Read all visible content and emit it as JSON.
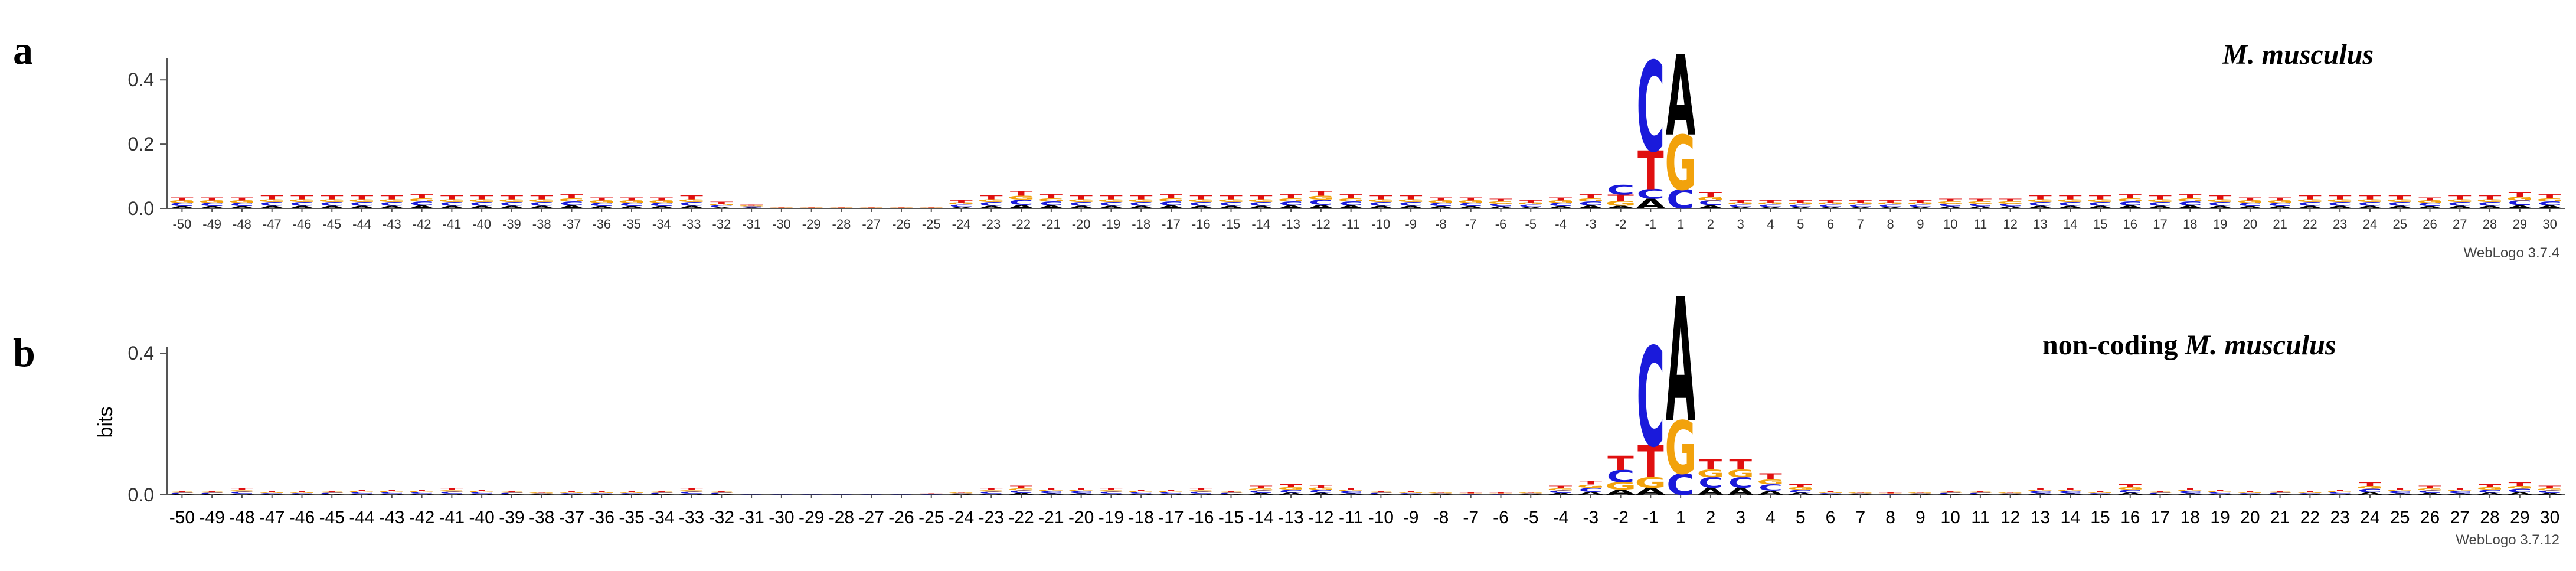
{
  "chart_data": [
    {
      "type": "sequence-logo",
      "panel_label": "a",
      "species": "M. musculus",
      "species_prefix": "",
      "credit": "WebLogo 3.7.4",
      "ylabel": "",
      "yticks": [
        "0.0",
        "0.2",
        "0.4"
      ],
      "ylim": [
        0,
        0.45
      ],
      "positions": [
        -50,
        -49,
        -48,
        -47,
        -46,
        -45,
        -44,
        -43,
        -42,
        -41,
        -40,
        -39,
        -38,
        -37,
        -36,
        -35,
        -34,
        -33,
        -32,
        -31,
        -30,
        -29,
        -28,
        -27,
        -26,
        -25,
        -24,
        -23,
        -22,
        -21,
        -20,
        -19,
        -18,
        -17,
        -16,
        -15,
        -14,
        -13,
        -12,
        -11,
        -10,
        -9,
        -8,
        -7,
        -6,
        -5,
        -4,
        -3,
        -2,
        -1,
        1,
        2,
        3,
        4,
        5,
        6,
        7,
        8,
        9,
        10,
        11,
        12,
        13,
        14,
        15,
        16,
        17,
        18,
        19,
        20,
        21,
        22,
        23,
        24,
        25,
        26,
        27,
        28,
        29,
        30
      ],
      "background_bits": [
        0.035,
        0.035,
        0.035,
        0.04,
        0.04,
        0.04,
        0.04,
        0.04,
        0.045,
        0.04,
        0.04,
        0.04,
        0.04,
        0.045,
        0.035,
        0.035,
        0.035,
        0.04,
        0.02,
        0.012,
        0.004,
        0.004,
        0.004,
        0.004,
        0.004,
        0.004,
        0.025,
        0.04,
        0.055,
        0.045,
        0.04,
        0.04,
        0.04,
        0.045,
        0.04,
        0.04,
        0.04,
        0.045,
        0.055,
        0.045,
        0.04,
        0.04,
        0.035,
        0.035,
        0.03,
        0.025,
        0.035,
        0.045,
        0.08,
        0,
        0,
        0.05,
        0.025,
        0.025,
        0.025,
        0.025,
        0.025,
        0.025,
        0.025,
        0.03,
        0.03,
        0.03,
        0.04,
        0.04,
        0.04,
        0.045,
        0.04,
        0.045,
        0.04,
        0.035,
        0.035,
        0.04,
        0.04,
        0.04,
        0.04,
        0.035,
        0.04,
        0.04,
        0.05,
        0.045
      ],
      "major_stacks": [
        {
          "position": -2,
          "letters": [
            {
              "base": "A",
              "bits": 0.008
            },
            {
              "base": "G",
              "bits": 0.015
            },
            {
              "base": "T",
              "bits": 0.02
            },
            {
              "base": "C",
              "bits": 0.03
            }
          ]
        },
        {
          "position": -1,
          "letters": [
            {
              "base": "A",
              "bits": 0.03
            },
            {
              "base": "C",
              "bits": 0.03
            },
            {
              "base": "T",
              "bits": 0.12
            },
            {
              "base": "C",
              "bits": 0.28
            }
          ]
        },
        {
          "position": 1,
          "letters": [
            {
              "base": "C",
              "bits": 0.06
            },
            {
              "base": "G",
              "bits": 0.17
            },
            {
              "base": "A",
              "bits": 0.25
            }
          ]
        }
      ]
    },
    {
      "type": "sequence-logo",
      "panel_label": "b",
      "species": "M. musculus",
      "species_prefix": "non-coding",
      "credit": "WebLogo 3.7.12",
      "ylabel": "bits",
      "yticks": [
        "0.0",
        "0.4"
      ],
      "ylim": [
        0,
        0.4
      ],
      "positions": [
        -50,
        -49,
        -48,
        -47,
        -46,
        -45,
        -44,
        -43,
        -42,
        -41,
        -40,
        -39,
        -38,
        -37,
        -36,
        -35,
        -34,
        -33,
        -32,
        -31,
        -30,
        -29,
        -28,
        -27,
        -26,
        -25,
        -24,
        -23,
        -22,
        -21,
        -20,
        -19,
        -18,
        -17,
        -16,
        -15,
        -14,
        -13,
        -12,
        -11,
        -10,
        -9,
        -8,
        -7,
        -6,
        -5,
        -4,
        -3,
        -2,
        -1,
        1,
        2,
        3,
        4,
        5,
        6,
        7,
        8,
        9,
        10,
        11,
        12,
        13,
        14,
        15,
        16,
        17,
        18,
        19,
        20,
        21,
        22,
        23,
        24,
        25,
        26,
        27,
        28,
        29,
        30
      ],
      "background_bits": [
        0.012,
        0.012,
        0.018,
        0.01,
        0.01,
        0.012,
        0.015,
        0.015,
        0.015,
        0.018,
        0.015,
        0.012,
        0.008,
        0.01,
        0.01,
        0.01,
        0.012,
        0.018,
        0.012,
        0.004,
        0.003,
        0.003,
        0.003,
        0.003,
        0.004,
        0.005,
        0.008,
        0.018,
        0.025,
        0.02,
        0.02,
        0.018,
        0.015,
        0.015,
        0.018,
        0.012,
        0.025,
        0.03,
        0.028,
        0.02,
        0.012,
        0.01,
        0.008,
        0.006,
        0.006,
        0.008,
        0.025,
        0.04,
        0.11,
        0,
        0,
        0.1,
        0.1,
        0.06,
        0.03,
        0.01,
        0.008,
        0.006,
        0.008,
        0.012,
        0.012,
        0.008,
        0.02,
        0.02,
        0.01,
        0.03,
        0.012,
        0.02,
        0.015,
        0.01,
        0.012,
        0.01,
        0.015,
        0.035,
        0.02,
        0.025,
        0.02,
        0.03,
        0.035,
        0.025
      ],
      "major_stacks": [
        {
          "position": -2,
          "letters": [
            {
              "base": "A",
              "bits": 0.015
            },
            {
              "base": "G",
              "bits": 0.02
            },
            {
              "base": "C",
              "bits": 0.035
            },
            {
              "base": "T",
              "bits": 0.04
            }
          ]
        },
        {
          "position": -1,
          "letters": [
            {
              "base": "A",
              "bits": 0.02
            },
            {
              "base": "G",
              "bits": 0.03
            },
            {
              "base": "T",
              "bits": 0.09
            },
            {
              "base": "C",
              "bits": 0.28
            }
          ]
        },
        {
          "position": 1,
          "letters": [
            {
              "base": "C",
              "bits": 0.06
            },
            {
              "base": "G",
              "bits": 0.15
            },
            {
              "base": "A",
              "bits": 0.35
            }
          ]
        }
      ]
    }
  ],
  "base_colors": {
    "A": "#000000",
    "C": "#1a1adb",
    "G": "#f2a20c",
    "T": "#e01010"
  }
}
